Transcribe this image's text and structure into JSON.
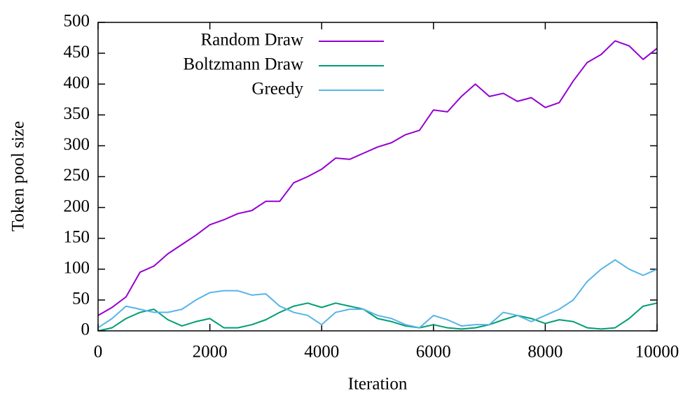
{
  "chart_data": {
    "type": "line",
    "xlabel": "Iteration",
    "ylabel": "Token pool size",
    "x": [
      0,
      250,
      500,
      750,
      1000,
      1250,
      1500,
      1750,
      2000,
      2250,
      2500,
      2750,
      3000,
      3250,
      3500,
      3750,
      4000,
      4250,
      4500,
      4750,
      5000,
      5250,
      5500,
      5750,
      6000,
      6250,
      6500,
      6750,
      7000,
      7250,
      7500,
      7750,
      8000,
      8250,
      8500,
      8750,
      9000,
      9250,
      9500,
      9750,
      10000
    ],
    "series": [
      {
        "name": "Random Draw",
        "color": "#9400d3",
        "values": [
          25,
          38,
          55,
          95,
          105,
          125,
          140,
          155,
          172,
          180,
          190,
          195,
          210,
          210,
          240,
          250,
          262,
          280,
          278,
          288,
          298,
          305,
          318,
          325,
          358,
          355,
          380,
          400,
          380,
          385,
          372,
          378,
          362,
          370,
          405,
          435,
          448,
          470,
          462,
          440,
          458
        ]
      },
      {
        "name": "Boltzmann Draw",
        "color": "#009e73",
        "values": [
          0,
          5,
          20,
          30,
          35,
          18,
          8,
          15,
          20,
          5,
          5,
          10,
          18,
          30,
          40,
          45,
          38,
          45,
          40,
          35,
          20,
          15,
          8,
          5,
          10,
          5,
          3,
          5,
          10,
          18,
          25,
          20,
          12,
          18,
          15,
          5,
          3,
          5,
          20,
          40,
          45
        ]
      },
      {
        "name": "Greedy",
        "color": "#56b4e9",
        "values": [
          5,
          20,
          40,
          35,
          30,
          30,
          35,
          50,
          62,
          65,
          65,
          58,
          60,
          40,
          30,
          25,
          10,
          30,
          35,
          35,
          25,
          20,
          10,
          5,
          25,
          18,
          8,
          10,
          10,
          30,
          25,
          15,
          25,
          35,
          50,
          80,
          100,
          115,
          100,
          90,
          100
        ]
      }
    ],
    "xlim": [
      0,
      10000
    ],
    "xticks": [
      0,
      2000,
      4000,
      6000,
      8000,
      10000
    ],
    "ylim": [
      0,
      500
    ],
    "yticks": [
      0,
      50,
      100,
      150,
      200,
      250,
      300,
      350,
      400,
      450,
      500
    ],
    "legend": "upper left"
  }
}
